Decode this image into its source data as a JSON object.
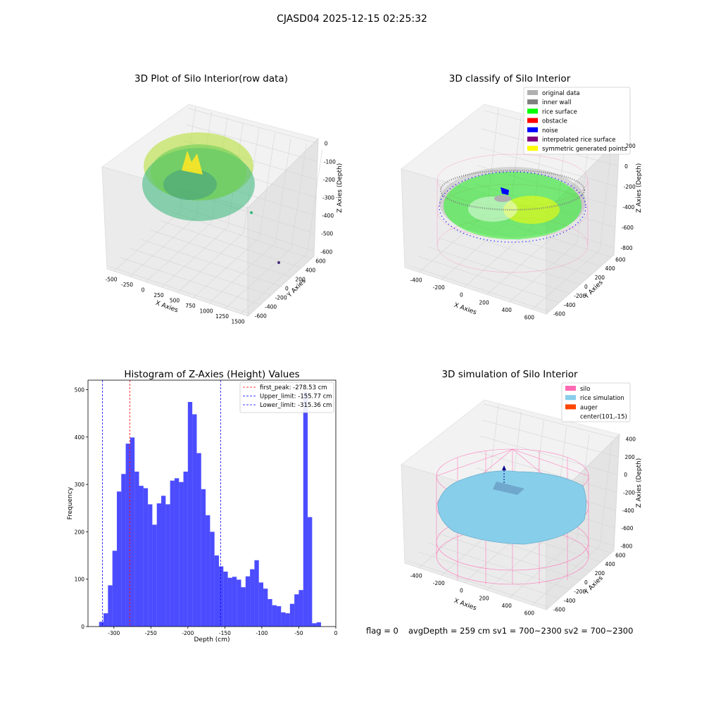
{
  "suptitle": "CJASD04 2025-12-15 02:25:32",
  "panels": {
    "raw": {
      "title": "3D Plot of Silo Interior(row data)",
      "xlabel": "X Axies",
      "ylabel": "Y Axies",
      "zlabel": "Z Axies (Depth)",
      "xticks": [
        "-500",
        "-250",
        "0",
        "250",
        "500",
        "750",
        "1000",
        "1250",
        "1500"
      ],
      "yticks": [
        "-600",
        "-400",
        "-200",
        "0",
        "200",
        "400",
        "600"
      ],
      "zticks": [
        "0",
        "-100",
        "-200",
        "-300",
        "-400",
        "-500",
        "-600"
      ]
    },
    "classify": {
      "title": "3D classify of Silo Interior",
      "xlabel": "X Axies",
      "ylabel": "Y Axies",
      "zlabel": "Z Axies (Depth)",
      "xticks": [
        "-400",
        "-200",
        "0",
        "200",
        "400",
        "600"
      ],
      "yticks": [
        "-600",
        "-400",
        "-200",
        "0",
        "200",
        "400",
        "600"
      ],
      "zticks": [
        "200",
        "0",
        "-200",
        "-400",
        "-600",
        "-800"
      ],
      "legend": [
        {
          "label": "original data",
          "color": "#b0b0b0"
        },
        {
          "label": "inner wall",
          "color": "#808080"
        },
        {
          "label": "rice surface",
          "color": "#00ff00"
        },
        {
          "label": "obstacle",
          "color": "#ff0000"
        },
        {
          "label": "noise",
          "color": "#0000ff"
        },
        {
          "label": "interpolated rice surface",
          "color": "#800080"
        },
        {
          "label": "symmetric generated points",
          "color": "#ffff00"
        }
      ]
    },
    "simulation": {
      "title": "3D simulation of Silo Interior",
      "xlabel": "X Axies",
      "ylabel": "Y Axies",
      "zlabel": "Z Axies (Depth)",
      "xticks": [
        "-400",
        "-200",
        "0",
        "200",
        "400",
        "600"
      ],
      "yticks": [
        "-600",
        "-400",
        "-200",
        "0",
        "200",
        "400",
        "600"
      ],
      "zticks": [
        "400",
        "200",
        "0",
        "-200",
        "-400",
        "-600",
        "-800"
      ],
      "legend": [
        {
          "label": "silo",
          "color": "#ff69b4"
        },
        {
          "label": "rice simulation",
          "color": "#87ceeb"
        },
        {
          "label": "auger",
          "color": "#ff4500"
        },
        {
          "label": "center(101,-15)",
          "color": "#ffffff"
        }
      ]
    }
  },
  "chart_data": {
    "type": "bar",
    "title": "Histogram of Z-Axies (Height) Values",
    "xlabel": "Depth (cm)",
    "ylabel": "Frequency",
    "xlim": [
      -335,
      0
    ],
    "ylim": [
      0,
      520
    ],
    "xticks": [
      -300,
      -250,
      -200,
      -150,
      -100,
      -50,
      0
    ],
    "yticks": [
      0,
      100,
      200,
      300,
      400,
      500
    ],
    "bin_start": -320,
    "bin_width": 6,
    "bar_color": "#0000ff",
    "values": [
      10,
      28,
      87,
      160,
      285,
      322,
      386,
      399,
      327,
      297,
      292,
      258,
      215,
      260,
      276,
      258,
      308,
      313,
      305,
      327,
      474,
      448,
      366,
      290,
      235,
      200,
      150,
      127,
      116,
      103,
      105,
      99,
      83,
      106,
      121,
      140,
      93,
      80,
      58,
      45,
      43,
      30,
      28,
      48,
      68,
      77,
      496,
      231,
      7,
      9
    ],
    "lines": [
      {
        "name": "first_peak: -278.53 cm",
        "x": -278.53,
        "color": "#ff0000"
      },
      {
        "name": "Upper_limit: -155.77 cm",
        "x": -155.77,
        "color": "#0000ff"
      },
      {
        "name": "Lower_limit: -315.36 cm",
        "x": -315.36,
        "color": "#0000ff"
      }
    ],
    "legend_position": "upper right"
  },
  "footer": {
    "flag": "flag = 0",
    "stats": "avgDepth = 259 cm  sv1 = 700~2300  sv2 = 700~2300"
  }
}
